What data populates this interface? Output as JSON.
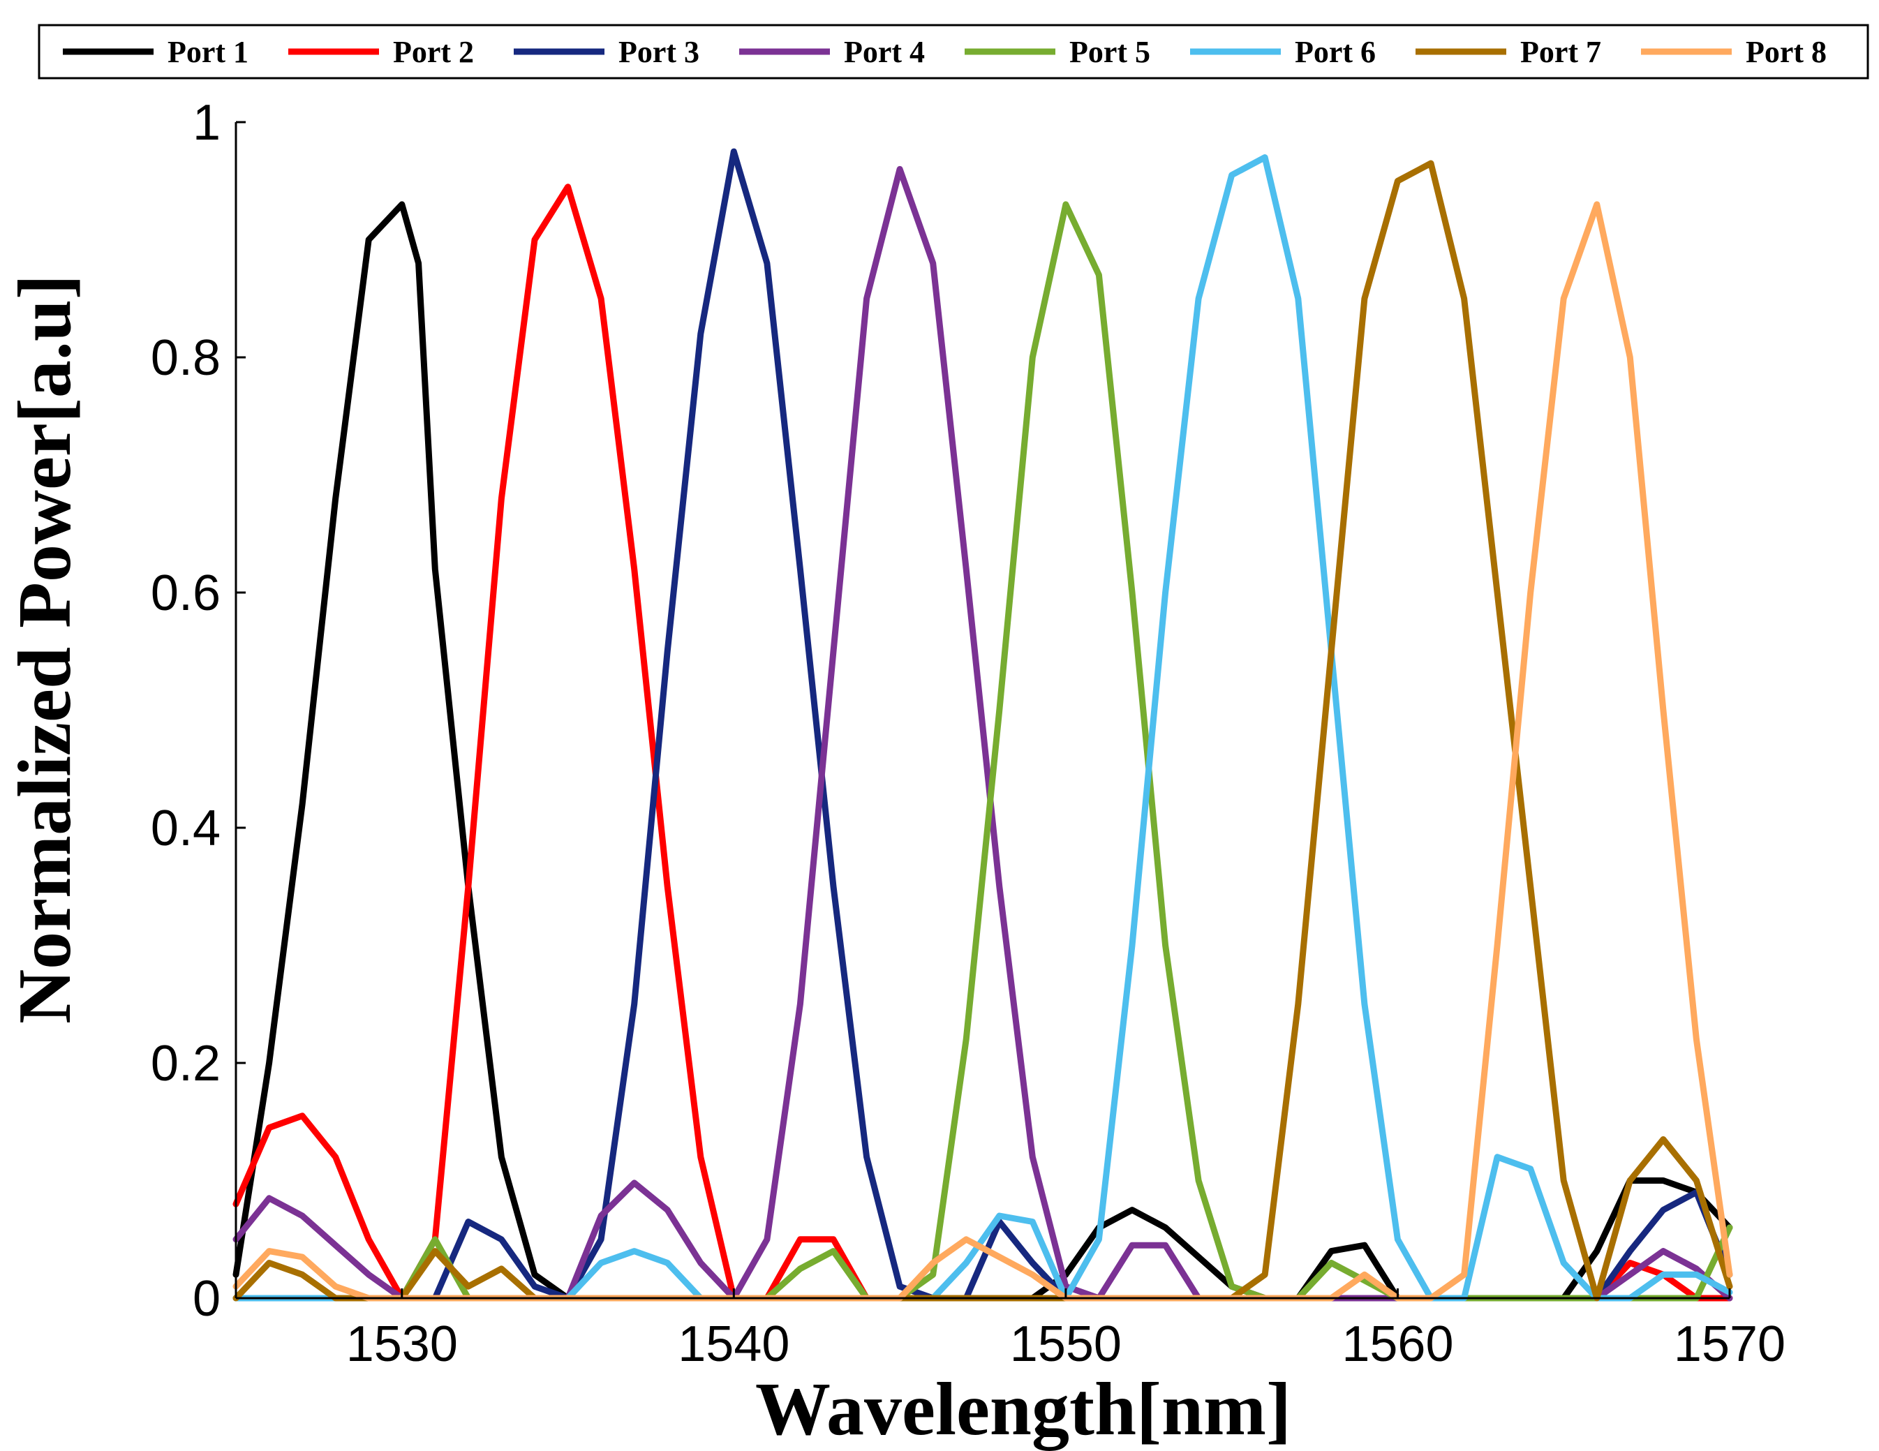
{
  "chart_data": {
    "type": "line",
    "title": "",
    "xlabel": "Wavelength[nm]",
    "ylabel": "Normalized Power[a.u]",
    "xlim": [
      1525,
      1570
    ],
    "ylim": [
      0,
      1
    ],
    "x_ticks": [
      1530,
      1540,
      1550,
      1560,
      1570
    ],
    "y_ticks": [
      0,
      0.2,
      0.4,
      0.6,
      0.8,
      1
    ],
    "y_tick_labels": [
      "0",
      "0.2",
      "0.4",
      "0.6",
      "0.8",
      "1"
    ],
    "grid": false,
    "legend_position": "top",
    "series": [
      {
        "name": "Port 1",
        "color": "#000000",
        "points": [
          [
            1525,
            0.02
          ],
          [
            1526,
            0.2
          ],
          [
            1527,
            0.42
          ],
          [
            1528,
            0.68
          ],
          [
            1529,
            0.9
          ],
          [
            1530,
            0.93
          ],
          [
            1530.5,
            0.88
          ],
          [
            1531,
            0.62
          ],
          [
            1532,
            0.35
          ],
          [
            1533,
            0.12
          ],
          [
            1534,
            0.02
          ],
          [
            1535,
            0
          ],
          [
            1549,
            0
          ],
          [
            1550,
            0.02
          ],
          [
            1551,
            0.06
          ],
          [
            1552,
            0.075
          ],
          [
            1553,
            0.06
          ],
          [
            1554,
            0.035
          ],
          [
            1555,
            0.01
          ],
          [
            1556,
            0
          ],
          [
            1557,
            0
          ],
          [
            1558,
            0.04
          ],
          [
            1559,
            0.045
          ],
          [
            1560,
            0
          ],
          [
            1565,
            0
          ],
          [
            1566,
            0.04
          ],
          [
            1567,
            0.1
          ],
          [
            1568,
            0.1
          ],
          [
            1569,
            0.09
          ],
          [
            1570,
            0.06
          ]
        ]
      },
      {
        "name": "Port 2",
        "color": "#ff0000",
        "points": [
          [
            1525,
            0.08
          ],
          [
            1526,
            0.145
          ],
          [
            1527,
            0.155
          ],
          [
            1528,
            0.12
          ],
          [
            1529,
            0.05
          ],
          [
            1530,
            0
          ],
          [
            1531,
            0.05
          ],
          [
            1532,
            0.35
          ],
          [
            1533,
            0.68
          ],
          [
            1534,
            0.9
          ],
          [
            1535,
            0.945
          ],
          [
            1536,
            0.85
          ],
          [
            1537,
            0.62
          ],
          [
            1538,
            0.35
          ],
          [
            1539,
            0.12
          ],
          [
            1540,
            0
          ],
          [
            1541,
            0
          ],
          [
            1542,
            0.05
          ],
          [
            1543,
            0.05
          ],
          [
            1544,
            0
          ],
          [
            1566,
            0
          ],
          [
            1567,
            0.03
          ],
          [
            1568,
            0.02
          ],
          [
            1569,
            0
          ],
          [
            1570,
            0
          ]
        ]
      },
      {
        "name": "Port 3",
        "color": "#16287f",
        "points": [
          [
            1525,
            0
          ],
          [
            1531,
            0
          ],
          [
            1532,
            0.065
          ],
          [
            1533,
            0.05
          ],
          [
            1534,
            0.01
          ],
          [
            1535,
            0
          ],
          [
            1536,
            0.05
          ],
          [
            1537,
            0.25
          ],
          [
            1538,
            0.55
          ],
          [
            1539,
            0.82
          ],
          [
            1540,
            0.975
          ],
          [
            1541,
            0.88
          ],
          [
            1542,
            0.62
          ],
          [
            1543,
            0.35
          ],
          [
            1544,
            0.12
          ],
          [
            1545,
            0.01
          ],
          [
            1546,
            0
          ],
          [
            1547,
            0
          ],
          [
            1548,
            0.065
          ],
          [
            1549,
            0.03
          ],
          [
            1550,
            0
          ],
          [
            1566,
            0
          ],
          [
            1567,
            0.04
          ],
          [
            1568,
            0.075
          ],
          [
            1569,
            0.09
          ],
          [
            1570,
            0.02
          ]
        ]
      },
      {
        "name": "Port 4",
        "color": "#7b3294",
        "points": [
          [
            1525,
            0.05
          ],
          [
            1526,
            0.085
          ],
          [
            1527,
            0.07
          ],
          [
            1528,
            0.045
          ],
          [
            1529,
            0.02
          ],
          [
            1530,
            0
          ],
          [
            1534,
            0
          ],
          [
            1535,
            0
          ],
          [
            1536,
            0.07
          ],
          [
            1537,
            0.098
          ],
          [
            1538,
            0.075
          ],
          [
            1539,
            0.03
          ],
          [
            1540,
            0
          ],
          [
            1541,
            0.05
          ],
          [
            1542,
            0.25
          ],
          [
            1543,
            0.55
          ],
          [
            1544,
            0.85
          ],
          [
            1545,
            0.96
          ],
          [
            1546,
            0.88
          ],
          [
            1547,
            0.62
          ],
          [
            1548,
            0.35
          ],
          [
            1549,
            0.12
          ],
          [
            1550,
            0.01
          ],
          [
            1551,
            0
          ],
          [
            1552,
            0.045
          ],
          [
            1553,
            0.045
          ],
          [
            1554,
            0
          ],
          [
            1566,
            0
          ],
          [
            1567,
            0.02
          ],
          [
            1568,
            0.04
          ],
          [
            1569,
            0.025
          ],
          [
            1570,
            0
          ]
        ]
      },
      {
        "name": "Port 5",
        "color": "#77ac30",
        "points": [
          [
            1525,
            0
          ],
          [
            1530,
            0
          ],
          [
            1531,
            0.05
          ],
          [
            1532,
            0
          ],
          [
            1541,
            0
          ],
          [
            1542,
            0.025
          ],
          [
            1543,
            0.04
          ],
          [
            1544,
            0
          ],
          [
            1545,
            0
          ],
          [
            1546,
            0.02
          ],
          [
            1547,
            0.22
          ],
          [
            1548,
            0.5
          ],
          [
            1549,
            0.8
          ],
          [
            1550,
            0.93
          ],
          [
            1551,
            0.87
          ],
          [
            1552,
            0.6
          ],
          [
            1553,
            0.3
          ],
          [
            1554,
            0.1
          ],
          [
            1555,
            0.01
          ],
          [
            1556,
            0
          ],
          [
            1557,
            0
          ],
          [
            1558,
            0.03
          ],
          [
            1559,
            0.015
          ],
          [
            1560,
            0
          ],
          [
            1569,
            0
          ],
          [
            1570,
            0.06
          ]
        ]
      },
      {
        "name": "Port 6",
        "color": "#4dbeee",
        "points": [
          [
            1525,
            0
          ],
          [
            1535,
            0
          ],
          [
            1536,
            0.03
          ],
          [
            1537,
            0.04
          ],
          [
            1538,
            0.03
          ],
          [
            1539,
            0
          ],
          [
            1546,
            0
          ],
          [
            1547,
            0.03
          ],
          [
            1548,
            0.07
          ],
          [
            1549,
            0.065
          ],
          [
            1550,
            0
          ],
          [
            1551,
            0.05
          ],
          [
            1552,
            0.3
          ],
          [
            1553,
            0.6
          ],
          [
            1554,
            0.85
          ],
          [
            1555,
            0.955
          ],
          [
            1556,
            0.97
          ],
          [
            1557,
            0.85
          ],
          [
            1558,
            0.55
          ],
          [
            1559,
            0.25
          ],
          [
            1560,
            0.05
          ],
          [
            1561,
            0
          ],
          [
            1562,
            0
          ],
          [
            1563,
            0.12
          ],
          [
            1564,
            0.11
          ],
          [
            1565,
            0.03
          ],
          [
            1566,
            0
          ],
          [
            1567,
            0
          ],
          [
            1568,
            0.02
          ],
          [
            1569,
            0.02
          ],
          [
            1570,
            0.005
          ]
        ]
      },
      {
        "name": "Port 7",
        "color": "#a86f00",
        "points": [
          [
            1525,
            0
          ],
          [
            1526,
            0.03
          ],
          [
            1527,
            0.02
          ],
          [
            1528,
            0
          ],
          [
            1530,
            0
          ],
          [
            1531,
            0.04
          ],
          [
            1532,
            0.01
          ],
          [
            1533,
            0.025
          ],
          [
            1534,
            0
          ],
          [
            1555,
            0
          ],
          [
            1556,
            0.02
          ],
          [
            1557,
            0.25
          ],
          [
            1558,
            0.55
          ],
          [
            1559,
            0.85
          ],
          [
            1560,
            0.95
          ],
          [
            1561,
            0.965
          ],
          [
            1562,
            0.85
          ],
          [
            1563,
            0.6
          ],
          [
            1564,
            0.35
          ],
          [
            1565,
            0.1
          ],
          [
            1566,
            0
          ],
          [
            1567,
            0.1
          ],
          [
            1568,
            0.135
          ],
          [
            1569,
            0.1
          ],
          [
            1570,
            0.01
          ]
        ]
      },
      {
        "name": "Port 8",
        "color": "#ffa95e",
        "points": [
          [
            1525,
            0.01
          ],
          [
            1526,
            0.04
          ],
          [
            1527,
            0.035
          ],
          [
            1528,
            0.01
          ],
          [
            1529,
            0
          ],
          [
            1545,
            0
          ],
          [
            1546,
            0.03
          ],
          [
            1547,
            0.05
          ],
          [
            1548,
            0.035
          ],
          [
            1549,
            0.02
          ],
          [
            1550,
            0
          ],
          [
            1558,
            0
          ],
          [
            1559,
            0.02
          ],
          [
            1560,
            0
          ],
          [
            1561,
            0
          ],
          [
            1562,
            0.02
          ],
          [
            1563,
            0.3
          ],
          [
            1564,
            0.6
          ],
          [
            1565,
            0.85
          ],
          [
            1566,
            0.93
          ],
          [
            1567,
            0.8
          ],
          [
            1568,
            0.5
          ],
          [
            1569,
            0.22
          ],
          [
            1570,
            0.02
          ]
        ]
      }
    ]
  }
}
